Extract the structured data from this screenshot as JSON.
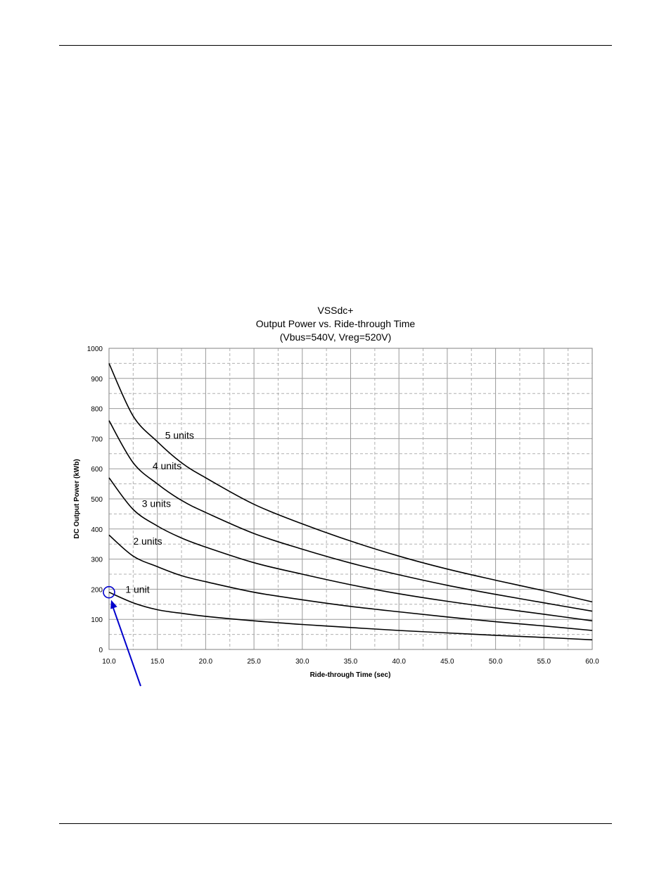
{
  "chart_data": {
    "type": "line",
    "title": [
      "VSSdc+",
      "Output Power vs. Ride-through Time",
      "(Vbus=540V, Vreg=520V)"
    ],
    "xlabel": "Ride-through Time (sec)",
    "ylabel": "DC Output Power (kWb)",
    "xlim": [
      10,
      60
    ],
    "ylim": [
      0,
      1000
    ],
    "x_ticks": [
      "10.0",
      "15.0",
      "20.0",
      "25.0",
      "30.0",
      "35.0",
      "40.0",
      "45.0",
      "50.0",
      "55.0",
      "60.0"
    ],
    "y_ticks": [
      "0",
      "100",
      "200",
      "300",
      "400",
      "500",
      "600",
      "700",
      "800",
      "900",
      "1000"
    ],
    "grid": true,
    "x": [
      10,
      12.5,
      15,
      17.5,
      20,
      25,
      30,
      35,
      40,
      45,
      50,
      55,
      60
    ],
    "series": [
      {
        "name": "1 unit",
        "values": [
          190,
          155,
          132,
          120,
          110,
          95,
          83,
          73,
          63,
          55,
          47,
          40,
          32
        ]
      },
      {
        "name": "2 units",
        "values": [
          380,
          310,
          275,
          245,
          225,
          190,
          165,
          143,
          125,
          108,
          92,
          78,
          63
        ]
      },
      {
        "name": "3 units",
        "values": [
          570,
          465,
          410,
          370,
          340,
          288,
          250,
          215,
          185,
          160,
          138,
          117,
          95
        ]
      },
      {
        "name": "4 units",
        "values": [
          760,
          620,
          550,
          495,
          455,
          385,
          333,
          287,
          248,
          213,
          183,
          155,
          127
        ]
      },
      {
        "name": "5 units",
        "values": [
          950,
          775,
          690,
          620,
          570,
          482,
          417,
          360,
          310,
          267,
          230,
          195,
          158
        ]
      }
    ],
    "label_positions_data": [
      {
        "series": 4,
        "x": 15.8,
        "y": 700
      },
      {
        "series": 3,
        "x": 14.5,
        "y": 598
      },
      {
        "series": 2,
        "x": 13.4,
        "y": 473
      },
      {
        "series": 1,
        "x": 12.5,
        "y": 348
      },
      {
        "series": 0,
        "x": 11.7,
        "y": 188
      }
    ],
    "annotation": {
      "type": "circle-arrow",
      "target_x": 10,
      "target_y": 190,
      "color": "#0000cc"
    }
  }
}
